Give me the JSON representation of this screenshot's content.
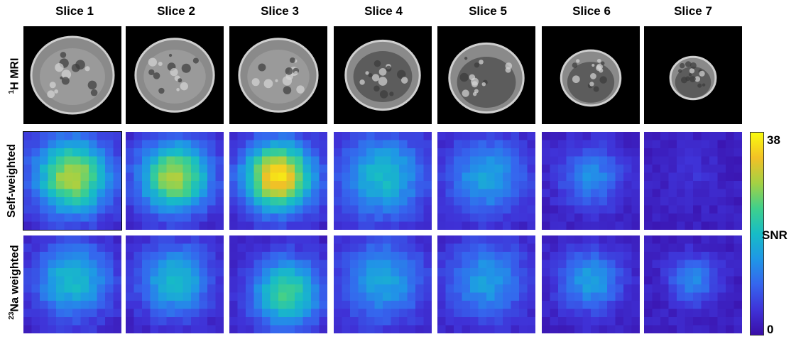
{
  "columns": [
    "Slice 1",
    "Slice 2",
    "Slice 3",
    "Slice 4",
    "Slice 5",
    "Slice 6",
    "Slice 7"
  ],
  "rows": {
    "mri": {
      "sup": "1",
      "label": "H MRI"
    },
    "self": {
      "label": "Self-weighted"
    },
    "na": {
      "sup": "23",
      "label": "Na weighted"
    }
  },
  "colorbar": {
    "max_label": "38",
    "min_label": "0",
    "quantity": "SNR",
    "max_value": 38,
    "min_value": 0,
    "colors": [
      "#3a0ea8",
      "#3f33d8",
      "#3566ee",
      "#1f97e6",
      "#17bcc6",
      "#3fd08c",
      "#a4d144",
      "#f2c126",
      "#f9fb0e"
    ]
  }
}
